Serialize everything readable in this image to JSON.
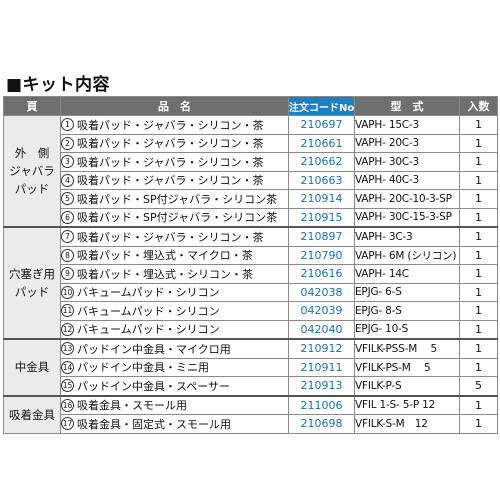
{
  "title": "■キット内容",
  "headers": {
    "page": "頁",
    "name": "品　名",
    "code": "注文コードNo.",
    "model": "型　式",
    "qty": "入数"
  },
  "groups": [
    {
      "label": [
        "外　側",
        "ジャバラ",
        "パッド"
      ],
      "rows": [
        {
          "num": "1",
          "name": "吸着パッド・ジャバラ・シリコン・茶",
          "code": "210697",
          "model": "VAPH- 15C-3",
          "qty": "1"
        },
        {
          "num": "2",
          "name": "吸着パッド・ジャバラ・シリコン・茶",
          "code": "210661",
          "model": "VAPH- 20C-3",
          "qty": "1"
        },
        {
          "num": "3",
          "name": "吸着パッド・ジャバラ・シリコン・茶",
          "code": "210662",
          "model": "VAPH- 30C-3",
          "qty": "1"
        },
        {
          "num": "4",
          "name": "吸着パッド・ジャバラ・シリコン・茶",
          "code": "210663",
          "model": "VAPH- 40C-3",
          "qty": "1"
        },
        {
          "num": "5",
          "name": "吸着パッド・SP付ジャバラ・シリコン茶",
          "code": "210914",
          "model": "VAPH- 20C-10-3-SP",
          "qty": "1"
        },
        {
          "num": "6",
          "name": "吸着パッド・SP付ジャバラ・シリコン茶",
          "code": "210915",
          "model": "VAPH- 30C-15-3-SP",
          "qty": "1"
        }
      ]
    },
    {
      "label": [
        "穴塞ぎ用",
        "パッド"
      ],
      "rows": [
        {
          "num": "7",
          "name": "吸着パッド・ジャバラ・シリコン・茶",
          "code": "210897",
          "model": "VAPH- 3C-3",
          "qty": "1"
        },
        {
          "num": "8",
          "name": "吸着パッド・埋込式・マイクロ・茶",
          "code": "210790",
          "model": "VAPH- 6M (シリコン)",
          "qty": "1"
        },
        {
          "num": "9",
          "name": "吸着パッド・埋込式・シリコン・茶",
          "code": "210616",
          "model": "VAPH- 14C",
          "qty": "1"
        },
        {
          "num": "10",
          "name": "バキュームパッド・シリコン",
          "code": "042038",
          "model": "EPJG- 6-S",
          "qty": "1"
        },
        {
          "num": "11",
          "name": "バキュームパッド・シリコン",
          "code": "042039",
          "model": "EPJG- 8-S",
          "qty": "1"
        },
        {
          "num": "12",
          "name": "バキュームパッド・シリコン",
          "code": "042040",
          "model": "EPJG- 10-S",
          "qty": "1"
        }
      ]
    },
    {
      "label": [
        "中金具"
      ],
      "rows": [
        {
          "num": "13",
          "name": "パッドイン中金具・マイクロ用",
          "code": "210912",
          "model": "VFILK-PSS-M　 5",
          "qty": "1"
        },
        {
          "num": "14",
          "name": "パッドイン中金具・ミニ用",
          "code": "210911",
          "model": "VFILK-PS-M　 5",
          "qty": "1"
        },
        {
          "num": "15",
          "name": "パッドイン中金具・スペーサー",
          "code": "210913",
          "model": "VFILK-P-S",
          "qty": "5"
        }
      ]
    },
    {
      "label": [
        "吸着金具"
      ],
      "rows": [
        {
          "num": "16",
          "name": "吸着金具・スモール用",
          "code": "211006",
          "model": "VFIL 1-S- 5-P 12",
          "qty": "1"
        },
        {
          "num": "17",
          "name": "吸着金具・固定式・スモール用",
          "code": "210698",
          "model": "VFILK-S-M　12",
          "qty": "1"
        }
      ]
    }
  ]
}
